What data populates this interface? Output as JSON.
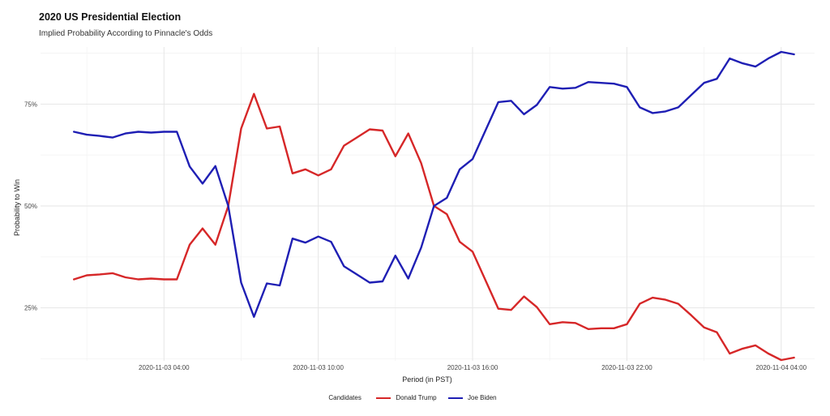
{
  "title": "2020 US Presidential Election",
  "subtitle": "Implied Probability According to Pinnacle's Odds",
  "legend": {
    "title": "Candidates",
    "items": [
      {
        "label": "Donald Trump",
        "color": "#d62728"
      },
      {
        "label": "Joe Biden",
        "color": "#1f1fb4"
      }
    ]
  },
  "chart_data": {
    "type": "line",
    "title": "2020 US Presidential Election",
    "subtitle": "Implied Probability According to Pinnacle's Odds",
    "xlabel": "Period (in PST)",
    "ylabel": "Probability to Win",
    "x_unit": "hours, 2020-11-03",
    "x": [
      0.5,
      1.0,
      1.5,
      2.0,
      2.5,
      3.0,
      3.5,
      4.0,
      4.5,
      5.0,
      5.5,
      6.0,
      6.5,
      7.0,
      7.5,
      8.0,
      8.5,
      9.0,
      9.5,
      10.0,
      10.5,
      11.0,
      11.5,
      12.0,
      12.5,
      13.0,
      13.5,
      14.0,
      14.5,
      15.0,
      15.5,
      16.0,
      16.5,
      17.0,
      17.5,
      18.0,
      18.5,
      19.0,
      19.5,
      20.0,
      20.5,
      21.0,
      21.5,
      22.0,
      22.5,
      23.0,
      23.5,
      24.0,
      24.5,
      25.0,
      25.5,
      26.0,
      26.5,
      27.0,
      27.5,
      28.0,
      28.5
    ],
    "xlim": [
      -0.8,
      29.3
    ],
    "x_ticks": [
      {
        "value": 4,
        "label": "2020-11-03 04:00"
      },
      {
        "value": 10,
        "label": "2020-11-03 10:00"
      },
      {
        "value": 16,
        "label": "2020-11-03 16:00"
      },
      {
        "value": 22,
        "label": "2020-11-03 22:00"
      },
      {
        "value": 28,
        "label": "2020-11-04 04:00"
      }
    ],
    "ylim": [
      0.12,
      0.89
    ],
    "y_ticks": [
      {
        "value": 0.25,
        "label": "25%"
      },
      {
        "value": 0.5,
        "label": "50%"
      },
      {
        "value": 0.75,
        "label": "75%"
      }
    ],
    "grid": true,
    "legend_position": "bottom",
    "series": [
      {
        "name": "Donald Trump",
        "color": "#d62728",
        "values": [
          0.32,
          0.33,
          0.332,
          0.335,
          0.325,
          0.32,
          0.322,
          0.32,
          0.32,
          0.405,
          0.445,
          0.405,
          0.5,
          0.69,
          0.775,
          0.69,
          0.695,
          0.58,
          0.59,
          0.575,
          0.59,
          0.648,
          0.668,
          0.688,
          0.685,
          0.622,
          0.678,
          0.605,
          0.5,
          0.48,
          0.412,
          0.388,
          0.318,
          0.248,
          0.245,
          0.278,
          0.252,
          0.21,
          0.215,
          0.213,
          0.198,
          0.2,
          0.2,
          0.21,
          0.26,
          0.275,
          0.27,
          0.26,
          0.232,
          0.202,
          0.19,
          0.138,
          0.15,
          0.158,
          0.138,
          0.122,
          0.128
        ]
      },
      {
        "name": "Joe Biden",
        "color": "#1f1fb4",
        "values": [
          0.682,
          0.675,
          0.672,
          0.668,
          0.678,
          0.682,
          0.68,
          0.682,
          0.682,
          0.597,
          0.555,
          0.598,
          0.5,
          0.312,
          0.228,
          0.31,
          0.305,
          0.42,
          0.41,
          0.425,
          0.412,
          0.352,
          0.332,
          0.312,
          0.315,
          0.378,
          0.322,
          0.398,
          0.5,
          0.52,
          0.59,
          0.615,
          0.685,
          0.755,
          0.758,
          0.725,
          0.748,
          0.792,
          0.788,
          0.79,
          0.804,
          0.802,
          0.8,
          0.792,
          0.742,
          0.728,
          0.732,
          0.742,
          0.772,
          0.802,
          0.812,
          0.862,
          0.85,
          0.842,
          0.862,
          0.878,
          0.872
        ]
      }
    ]
  }
}
